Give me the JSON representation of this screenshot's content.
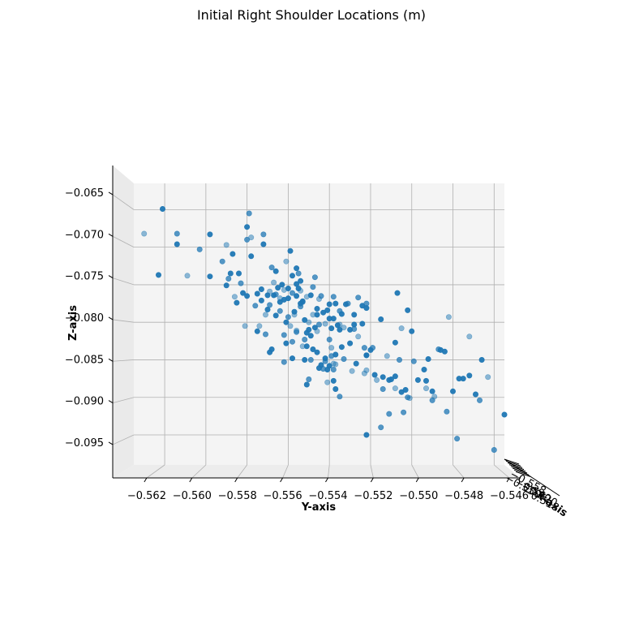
{
  "chart_data": {
    "type": "scatter",
    "title": "Initial Right Shoulder Locations (m)",
    "xlabel": "Y-axis",
    "ylabel": "Z-axis",
    "zlabel": "X-axis",
    "xlim": [
      -0.5635,
      -0.5455
    ],
    "ylim": [
      -0.099,
      -0.0615
    ],
    "xticks": [
      -0.562,
      -0.56,
      -0.558,
      -0.556,
      -0.554,
      -0.552,
      -0.55,
      -0.548,
      -0.546
    ],
    "xtick_labels": [
      "−0.562",
      "−0.560",
      "−0.558",
      "−0.556",
      "−0.554",
      "−0.552",
      "−0.550",
      "−0.548",
      "−0.546"
    ],
    "yticks": [
      -0.065,
      -0.07,
      -0.075,
      -0.08,
      -0.085,
      -0.09,
      -0.095
    ],
    "ytick_labels": [
      "−0.065",
      "−0.070",
      "−0.075",
      "−0.080",
      "−0.085",
      "−0.090",
      "−0.095"
    ],
    "grid": true,
    "marker_color": "#1f77b4",
    "points": [
      [
        -0.563,
        -0.0682
      ],
      [
        -0.5623,
        -0.0737
      ],
      [
        -0.5621,
        -0.0649
      ],
      [
        -0.5614,
        -0.0682
      ],
      [
        -0.5614,
        -0.0696
      ],
      [
        -0.5609,
        -0.0738
      ],
      [
        -0.5603,
        -0.0703
      ],
      [
        -0.5598,
        -0.0683
      ],
      [
        -0.5598,
        -0.0739
      ],
      [
        -0.5592,
        -0.0719
      ],
      [
        -0.559,
        -0.0697
      ],
      [
        -0.559,
        -0.0751
      ],
      [
        -0.5589,
        -0.0742
      ],
      [
        -0.5588,
        -0.0735
      ],
      [
        -0.5587,
        -0.0709
      ],
      [
        -0.5586,
        -0.0766
      ],
      [
        -0.5585,
        -0.0774
      ],
      [
        -0.5584,
        -0.0735
      ],
      [
        -0.5583,
        -0.0748
      ],
      [
        -0.5582,
        -0.0761
      ],
      [
        -0.5581,
        -0.0805
      ],
      [
        -0.558,
        -0.069
      ],
      [
        -0.558,
        -0.0673
      ],
      [
        -0.558,
        -0.0765
      ],
      [
        -0.5579,
        -0.0655
      ],
      [
        -0.5578,
        -0.0687
      ],
      [
        -0.5578,
        -0.0712
      ],
      [
        -0.5576,
        -0.0778
      ],
      [
        -0.5575,
        -0.0812
      ],
      [
        -0.5575,
        -0.0762
      ],
      [
        -0.5574,
        -0.0805
      ],
      [
        -0.5573,
        -0.0771
      ],
      [
        -0.5573,
        -0.0756
      ],
      [
        -0.5572,
        -0.0683
      ],
      [
        -0.5572,
        -0.0696
      ],
      [
        -0.5571,
        -0.079
      ],
      [
        -0.5571,
        -0.0816
      ],
      [
        -0.557,
        -0.0764
      ],
      [
        -0.557,
        -0.0783
      ],
      [
        -0.5569,
        -0.0777
      ],
      [
        -0.5569,
        -0.0759
      ],
      [
        -0.5569,
        -0.084
      ],
      [
        -0.5568,
        -0.0727
      ],
      [
        -0.5568,
        -0.0836
      ],
      [
        -0.5567,
        -0.0764
      ],
      [
        -0.5567,
        -0.0747
      ],
      [
        -0.5566,
        -0.0732
      ],
      [
        -0.5566,
        -0.0791
      ],
      [
        -0.5566,
        -0.0763
      ],
      [
        -0.5565,
        -0.0754
      ],
      [
        -0.5564,
        -0.0768
      ],
      [
        -0.5564,
        -0.0785
      ],
      [
        -0.5564,
        -0.0773
      ],
      [
        -0.5563,
        -0.075
      ],
      [
        -0.5562,
        -0.0853
      ],
      [
        -0.5562,
        -0.0757
      ],
      [
        -0.5562,
        -0.077
      ],
      [
        -0.5562,
        -0.0817
      ],
      [
        -0.5561,
        -0.08
      ],
      [
        -0.5561,
        -0.0828
      ],
      [
        -0.5561,
        -0.0719
      ],
      [
        -0.556,
        -0.0768
      ],
      [
        -0.556,
        -0.0755
      ],
      [
        -0.556,
        -0.0793
      ],
      [
        -0.5559,
        -0.0705
      ],
      [
        -0.5559,
        -0.0805
      ],
      [
        -0.5558,
        -0.0826
      ],
      [
        -0.5558,
        -0.0848
      ],
      [
        -0.5558,
        -0.0738
      ],
      [
        -0.5558,
        -0.0761
      ],
      [
        -0.5557,
        -0.079
      ],
      [
        -0.5557,
        -0.0786
      ],
      [
        -0.5556,
        -0.0813
      ],
      [
        -0.5556,
        -0.0749
      ],
      [
        -0.5556,
        -0.0765
      ],
      [
        -0.5556,
        -0.0811
      ],
      [
        -0.5556,
        -0.0728
      ],
      [
        -0.5555,
        -0.0755
      ],
      [
        -0.5555,
        -0.0735
      ],
      [
        -0.5554,
        -0.0775
      ],
      [
        -0.5554,
        -0.0758
      ],
      [
        -0.5554,
        -0.0779
      ],
      [
        -0.5554,
        -0.0745
      ],
      [
        -0.5553,
        -0.0772
      ],
      [
        -0.5553,
        -0.0773
      ],
      [
        -0.5553,
        -0.0832
      ],
      [
        -0.5552,
        -0.0797
      ],
      [
        -0.5552,
        -0.0823
      ],
      [
        -0.5552,
        -0.085
      ],
      [
        -0.5551,
        -0.0883
      ],
      [
        -0.5551,
        -0.0766
      ],
      [
        -0.5551,
        -0.0814
      ],
      [
        -0.5551,
        -0.0832
      ],
      [
        -0.555,
        -0.0876
      ],
      [
        -0.555,
        -0.081
      ],
      [
        -0.555,
        -0.08
      ],
      [
        -0.5549,
        -0.085
      ],
      [
        -0.5549,
        -0.0818
      ],
      [
        -0.5549,
        -0.0764
      ],
      [
        -0.5548,
        -0.0753
      ],
      [
        -0.5548,
        -0.079
      ],
      [
        -0.5548,
        -0.0836
      ],
      [
        -0.5547,
        -0.074
      ],
      [
        -0.5547,
        -0.0807
      ],
      [
        -0.5546,
        -0.0782
      ],
      [
        -0.5546,
        -0.0812
      ],
      [
        -0.5546,
        -0.084
      ],
      [
        -0.5546,
        -0.079
      ],
      [
        -0.5545,
        -0.0803
      ],
      [
        -0.5545,
        -0.0861
      ],
      [
        -0.5545,
        -0.0769
      ],
      [
        -0.5544,
        -0.0765
      ],
      [
        -0.5544,
        -0.0857
      ],
      [
        -0.5543,
        -0.0787
      ],
      [
        -0.5543,
        -0.0862
      ],
      [
        -0.5542,
        -0.0802
      ],
      [
        -0.5542,
        -0.0848
      ],
      [
        -0.5542,
        -0.0852
      ],
      [
        -0.5541,
        -0.0784
      ],
      [
        -0.5541,
        -0.0863
      ],
      [
        -0.5541,
        -0.088
      ],
      [
        -0.554,
        -0.0795
      ],
      [
        -0.554,
        -0.0776
      ],
      [
        -0.554,
        -0.0823
      ],
      [
        -0.554,
        -0.0858
      ],
      [
        -0.5539,
        -0.0834
      ],
      [
        -0.5539,
        -0.0845
      ],
      [
        -0.5539,
        -0.0808
      ],
      [
        -0.5538,
        -0.0795
      ],
      [
        -0.5538,
        -0.0766
      ],
      [
        -0.5538,
        -0.0855
      ],
      [
        -0.5538,
        -0.0878
      ],
      [
        -0.5538,
        -0.0863
      ],
      [
        -0.5537,
        -0.0843
      ],
      [
        -0.5537,
        -0.0889
      ],
      [
        -0.5537,
        -0.0856
      ],
      [
        -0.5537,
        -0.0775
      ],
      [
        -0.5536,
        -0.0804
      ],
      [
        -0.5535,
        -0.0899
      ],
      [
        -0.5535,
        -0.081
      ],
      [
        -0.5535,
        -0.0803
      ],
      [
        -0.5535,
        -0.0785
      ],
      [
        -0.5534,
        -0.0789
      ],
      [
        -0.5534,
        -0.0833
      ],
      [
        -0.5533,
        -0.0849
      ],
      [
        -0.5533,
        -0.0807
      ],
      [
        -0.5532,
        -0.0776
      ],
      [
        -0.5531,
        -0.0775
      ],
      [
        -0.553,
        -0.081
      ],
      [
        -0.553,
        -0.0828
      ],
      [
        -0.5529,
        -0.0865
      ],
      [
        -0.5528,
        -0.0803
      ],
      [
        -0.5528,
        -0.079
      ],
      [
        -0.5528,
        -0.0809
      ],
      [
        -0.5527,
        -0.0855
      ],
      [
        -0.5526,
        -0.0819
      ],
      [
        -0.5526,
        -0.0767
      ],
      [
        -0.5524,
        -0.0778
      ],
      [
        -0.5524,
        -0.0802
      ],
      [
        -0.5523,
        -0.0834
      ],
      [
        -0.5523,
        -0.0868
      ],
      [
        -0.5522,
        -0.0781
      ],
      [
        -0.5522,
        -0.0775
      ],
      [
        -0.5522,
        -0.095
      ],
      [
        -0.5522,
        -0.0844
      ],
      [
        -0.5522,
        -0.0864
      ],
      [
        -0.5522,
        -0.0844
      ],
      [
        -0.552,
        -0.0837
      ],
      [
        -0.5519,
        -0.0834
      ],
      [
        -0.5518,
        -0.087
      ],
      [
        -0.5517,
        -0.0877
      ],
      [
        -0.5515,
        -0.094
      ],
      [
        -0.5515,
        -0.0796
      ],
      [
        -0.5514,
        -0.0873
      ],
      [
        -0.5514,
        -0.0889
      ],
      [
        -0.5512,
        -0.0845
      ],
      [
        -0.5511,
        -0.0877
      ],
      [
        -0.5511,
        -0.0922
      ],
      [
        -0.551,
        -0.0876
      ],
      [
        -0.5508,
        -0.0827
      ],
      [
        -0.5508,
        -0.0888
      ],
      [
        -0.5508,
        -0.0872
      ],
      [
        -0.5507,
        -0.0761
      ],
      [
        -0.5506,
        -0.085
      ],
      [
        -0.5505,
        -0.0893
      ],
      [
        -0.5505,
        -0.0808
      ],
      [
        -0.5504,
        -0.092
      ],
      [
        -0.5503,
        -0.089
      ],
      [
        -0.5502,
        -0.0784
      ],
      [
        -0.5502,
        -0.09
      ],
      [
        -0.5501,
        -0.0901
      ],
      [
        -0.55,
        -0.0812
      ],
      [
        -0.5499,
        -0.0852
      ],
      [
        -0.5497,
        -0.0877
      ],
      [
        -0.5494,
        -0.0863
      ],
      [
        -0.5493,
        -0.0888
      ],
      [
        -0.5493,
        -0.0878
      ],
      [
        -0.5492,
        -0.0849
      ],
      [
        -0.549,
        -0.0904
      ],
      [
        -0.549,
        -0.0892
      ],
      [
        -0.5489,
        -0.0899
      ],
      [
        -0.5487,
        -0.0836
      ],
      [
        -0.5486,
        -0.0837
      ],
      [
        -0.5484,
        -0.0839
      ],
      [
        -0.5483,
        -0.0919
      ],
      [
        -0.5482,
        -0.0793
      ],
      [
        -0.548,
        -0.0892
      ],
      [
        -0.5478,
        -0.0955
      ],
      [
        -0.5477,
        -0.0875
      ],
      [
        -0.5475,
        -0.0875
      ],
      [
        -0.5472,
        -0.0819
      ],
      [
        -0.5472,
        -0.0871
      ],
      [
        -0.5469,
        -0.0896
      ],
      [
        -0.5467,
        -0.0904
      ],
      [
        -0.5466,
        -0.085
      ],
      [
        -0.5463,
        -0.0873
      ],
      [
        -0.546,
        -0.097
      ],
      [
        -0.5455,
        -0.0923
      ]
    ]
  },
  "text": {
    "title": "Initial Right Shoulder Locations (m)",
    "xlabel": "Y-axis",
    "ylabel": "Z-axis",
    "zlabel": "X-axis",
    "ztick_labels": [
      "−0.558",
      "−0.550",
      "−0.540",
      "−0.520",
      "−0.518"
    ]
  }
}
